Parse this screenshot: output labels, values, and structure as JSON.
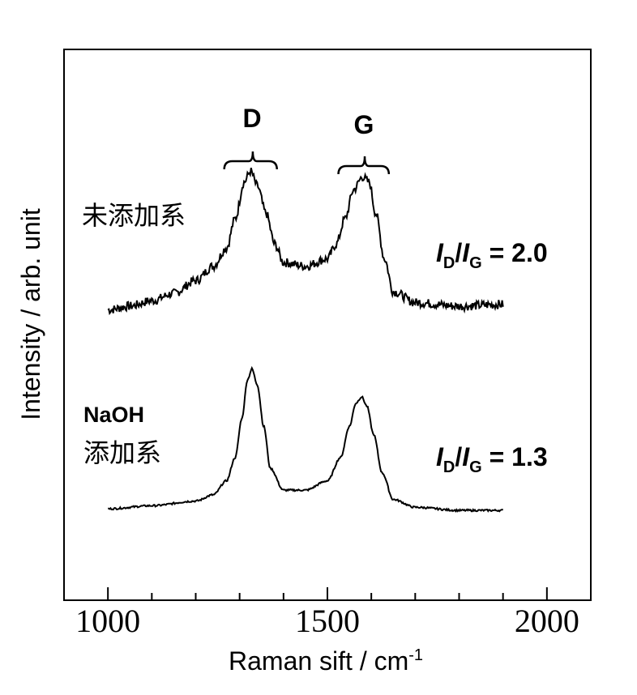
{
  "chart_data": {
    "type": "line",
    "xlabel": "Raman sift / cm",
    "xlabel_superscript": "-1",
    "ylabel": "Intensity / arb. unit",
    "xlim": [
      900,
      2100
    ],
    "x_ticks": [
      1000,
      1500,
      2000
    ],
    "x_tick_labels": [
      "1000",
      "1500",
      "2000"
    ],
    "x_minor_step": 100,
    "grid": false,
    "y_ticks_shown": false,
    "peak_labels": [
      {
        "text": "D",
        "x": 1330,
        "bracket": [
          1265,
          1385
        ]
      },
      {
        "text": "G",
        "x": 1585,
        "bracket": [
          1525,
          1640
        ]
      }
    ],
    "series": [
      {
        "label_lines": [
          "未添加系"
        ],
        "ratio": {
          "italic": "I",
          "sub1": "D",
          "slash": "/",
          "sub2": "G",
          "value_text": " = 2.0"
        },
        "x": [
          1000,
          1050,
          1100,
          1150,
          1200,
          1240,
          1270,
          1290,
          1310,
          1325,
          1340,
          1360,
          1380,
          1400,
          1450,
          1500,
          1520,
          1540,
          1560,
          1580,
          1595,
          1610,
          1630,
          1650,
          1700,
          1800,
          1900
        ],
        "y": [
          0.02,
          0.04,
          0.07,
          0.11,
          0.18,
          0.26,
          0.36,
          0.52,
          0.72,
          0.78,
          0.7,
          0.55,
          0.38,
          0.28,
          0.26,
          0.3,
          0.38,
          0.52,
          0.68,
          0.75,
          0.72,
          0.55,
          0.3,
          0.12,
          0.06,
          0.04,
          0.05
        ],
        "noisy": true
      },
      {
        "label_lines": [
          "NaOH",
          "添加系"
        ],
        "label_colors": [
          "#3333dd",
          "#000000"
        ],
        "ratio": {
          "italic": "I",
          "sub1": "D",
          "slash": "/",
          "sub2": "G",
          "value_text": " = 1.3"
        },
        "x": [
          1000,
          1100,
          1200,
          1240,
          1270,
          1290,
          1305,
          1318,
          1328,
          1340,
          1355,
          1370,
          1400,
          1450,
          1500,
          1530,
          1550,
          1565,
          1578,
          1590,
          1605,
          1625,
          1650,
          1700,
          1800,
          1900
        ],
        "y": [
          0.02,
          0.04,
          0.07,
          0.11,
          0.2,
          0.35,
          0.6,
          0.85,
          0.92,
          0.82,
          0.55,
          0.28,
          0.14,
          0.14,
          0.2,
          0.35,
          0.55,
          0.7,
          0.74,
          0.68,
          0.5,
          0.25,
          0.08,
          0.03,
          0.01,
          0.01
        ],
        "noisy": false
      }
    ]
  }
}
